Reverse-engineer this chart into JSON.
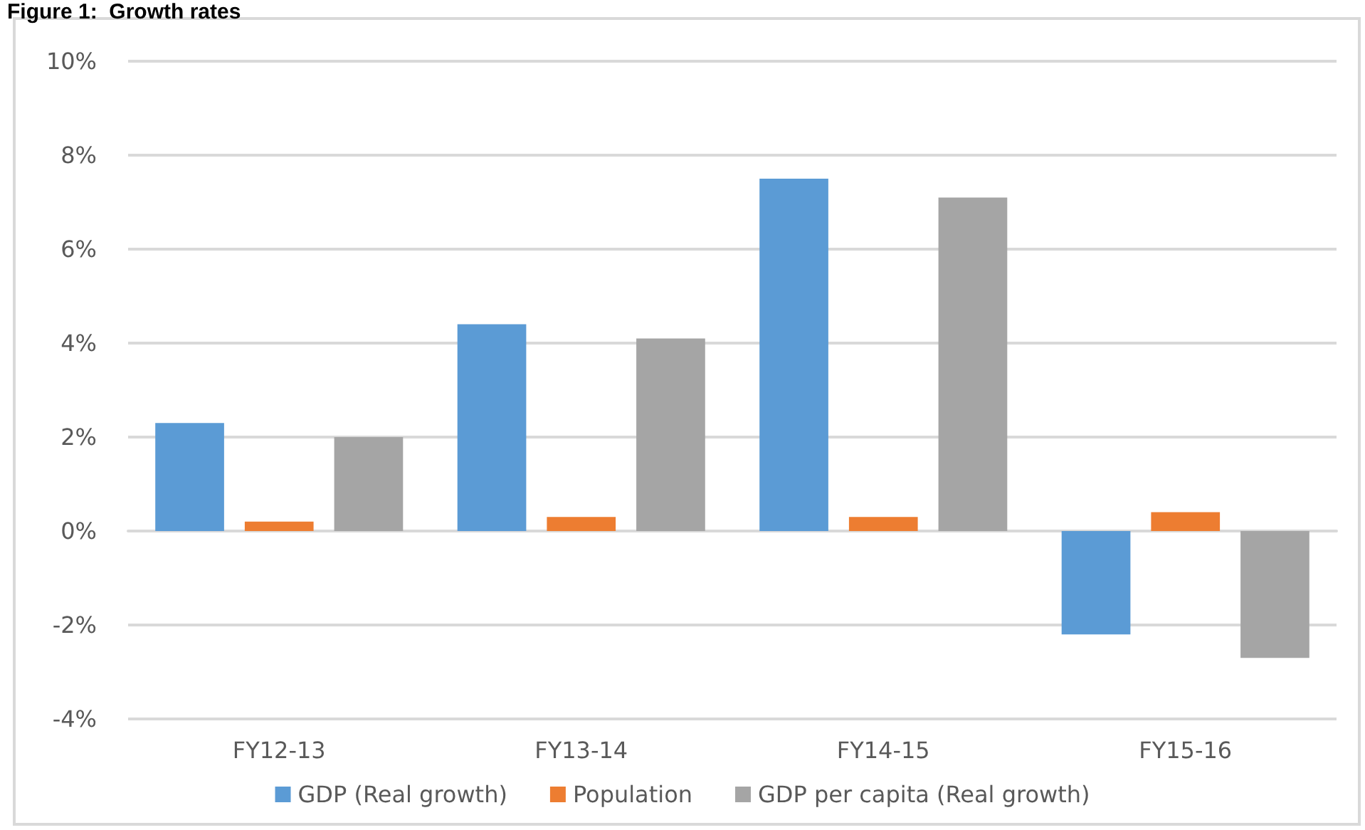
{
  "chart_data": {
    "type": "bar",
    "title": "Figure 1:  Growth rates",
    "categories": [
      "FY12-13",
      "FY13-14",
      "FY14-15",
      "FY15-16"
    ],
    "series": [
      {
        "name": "GDP (Real growth)",
        "color": "#5b9bd5",
        "values": [
          2.3,
          4.4,
          7.5,
          -2.2
        ]
      },
      {
        "name": "Population",
        "color": "#ed7d31",
        "values": [
          0.2,
          0.3,
          0.3,
          0.4
        ]
      },
      {
        "name": "GDP per capita (Real growth)",
        "color": "#a5a5a5",
        "values": [
          2.0,
          4.1,
          7.1,
          -2.7
        ]
      }
    ],
    "ylim": [
      -4,
      10
    ],
    "yticks": [
      {
        "value": -4,
        "label": "-4%"
      },
      {
        "value": -2,
        "label": "-2%"
      },
      {
        "value": 0,
        "label": "0%"
      },
      {
        "value": 2,
        "label": "2%"
      },
      {
        "value": 4,
        "label": "4%"
      },
      {
        "value": 6,
        "label": "6%"
      },
      {
        "value": 8,
        "label": "8%"
      },
      {
        "value": 10,
        "label": "10%"
      }
    ],
    "grid": "y",
    "legend": "bottom"
  }
}
